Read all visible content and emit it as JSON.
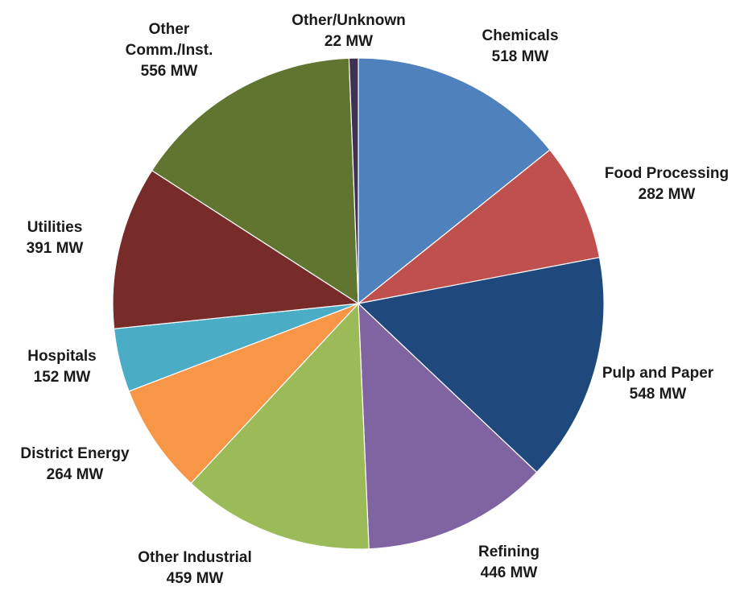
{
  "chart_data": {
    "type": "pie",
    "title": "",
    "unit": "MW",
    "start_angle_deg": 0,
    "direction": "clockwise",
    "slices": [
      {
        "name": "Chemicals",
        "label_lines": [
          "Chemicals",
          "518 MW"
        ],
        "value": 518,
        "color": "#4F81BD"
      },
      {
        "name": "Food Processing",
        "label_lines": [
          "Food Processing",
          "282 MW"
        ],
        "value": 282,
        "color": "#C0504D"
      },
      {
        "name": "Pulp and Paper",
        "label_lines": [
          "Pulp and Paper",
          "548 MW"
        ],
        "value": 548,
        "color": "#1F497D"
      },
      {
        "name": "Refining",
        "label_lines": [
          "Refining",
          "446 MW"
        ],
        "value": 446,
        "color": "#8064A2"
      },
      {
        "name": "Other Industrial",
        "label_lines": [
          "Other Industrial",
          "459 MW"
        ],
        "value": 459,
        "color": "#9BBB59"
      },
      {
        "name": "District Energy",
        "label_lines": [
          "District Energy",
          "264 MW"
        ],
        "value": 264,
        "color": "#F79646"
      },
      {
        "name": "Hospitals",
        "label_lines": [
          "Hospitals",
          "152 MW"
        ],
        "value": 152,
        "color": "#4BACC6"
      },
      {
        "name": "Utilities",
        "label_lines": [
          "Utilities",
          "391 MW"
        ],
        "value": 391,
        "color": "#772C2A"
      },
      {
        "name": "Other Comm./Inst.",
        "label_lines": [
          "Other",
          "Comm./Inst.",
          "556 MW"
        ],
        "value": 556,
        "color": "#5F7530"
      },
      {
        "name": "Other/Unknown",
        "label_lines": [
          "Other/Unknown",
          "22 MW"
        ],
        "value": 22,
        "color": "#3F3151"
      }
    ]
  }
}
